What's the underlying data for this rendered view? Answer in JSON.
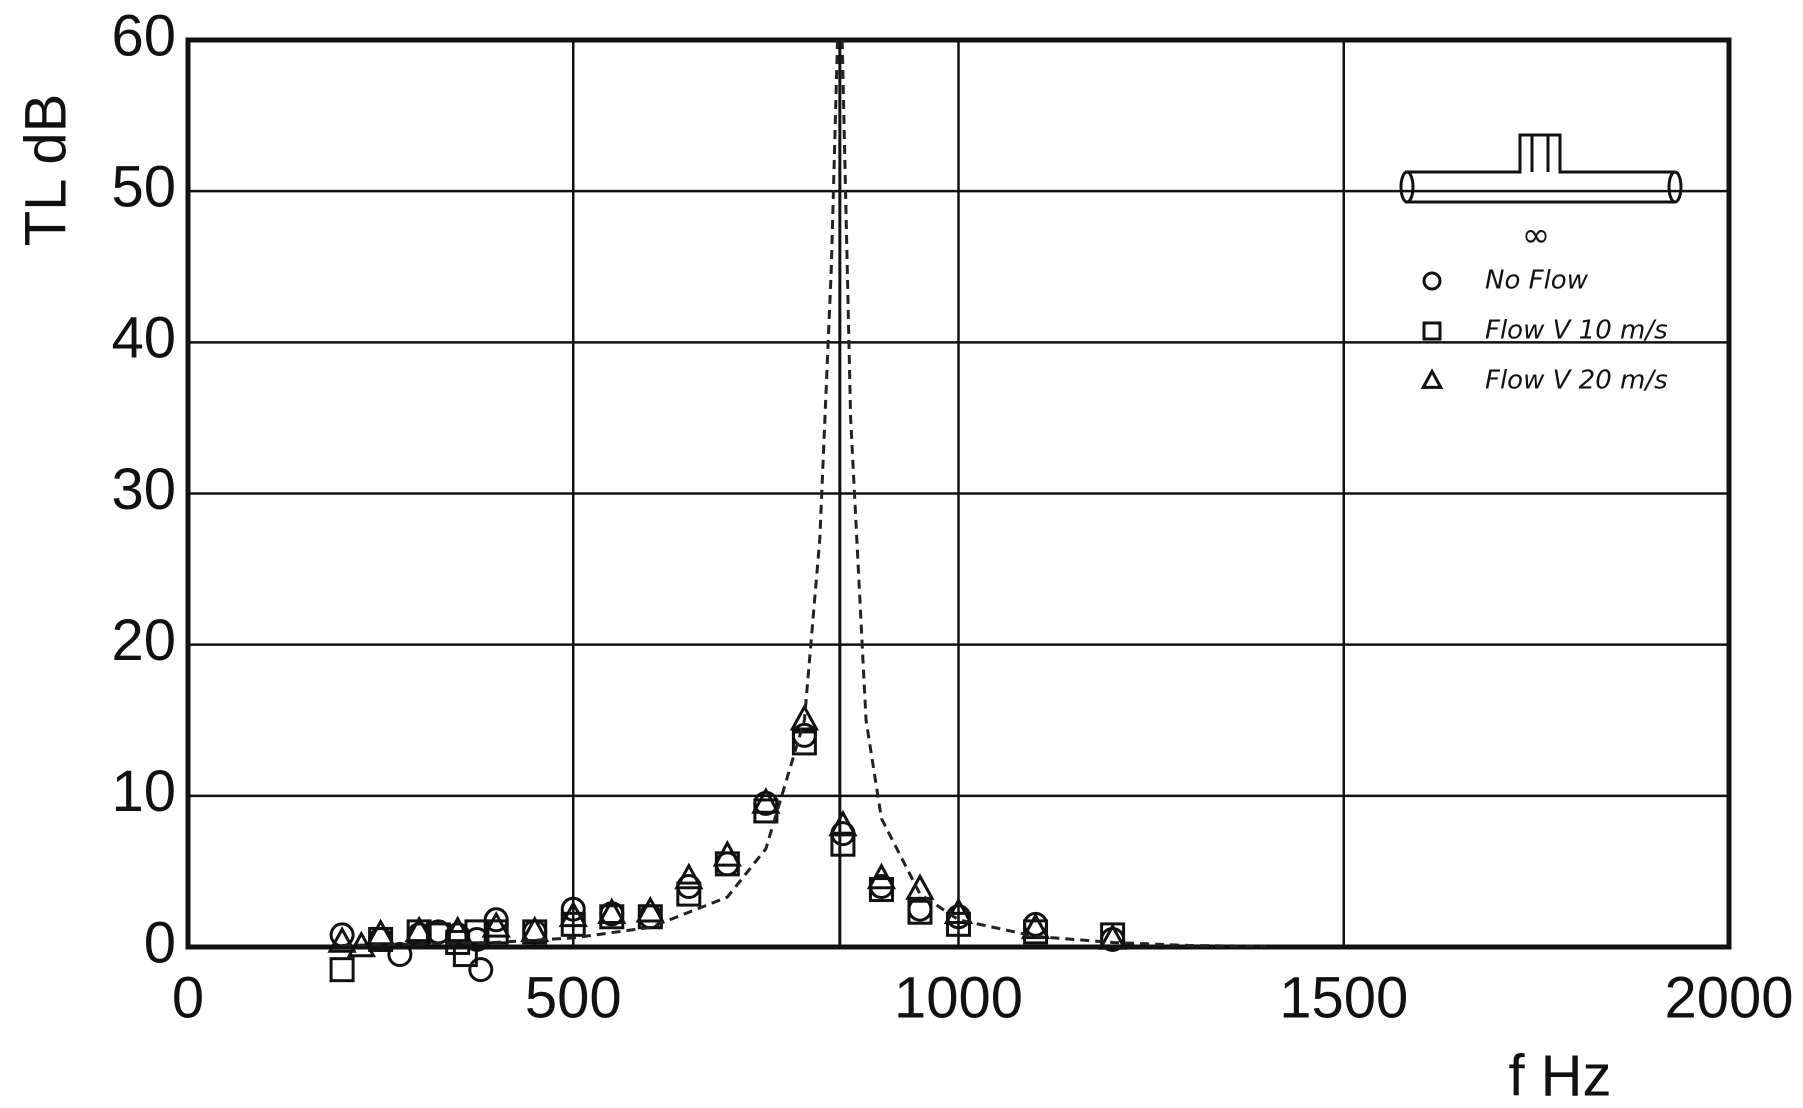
{
  "chart_data": {
    "type": "scatter",
    "y_label": "TL dB",
    "x_label": "f Hz",
    "xlim": [
      0,
      2000
    ],
    "ylim": [
      0,
      60
    ],
    "xticks": [
      0,
      500,
      1000,
      1500,
      2000
    ],
    "yticks": [
      0,
      10,
      20,
      30,
      40,
      50,
      60
    ],
    "grid": true,
    "legend": "upper right",
    "annotation": "∞",
    "vlines": [
      846
    ],
    "series": [
      {
        "name": "No Flow",
        "marker": "circle",
        "color": "#111",
        "x": [
          200,
          250,
          275,
          300,
          325,
          350,
          375,
          380,
          400,
          450,
          500,
          550,
          600,
          650,
          700,
          750,
          800,
          850,
          900,
          950,
          1000,
          1100,
          1200
        ],
        "values": [
          0.8,
          0.5,
          -0.5,
          0.8,
          1,
          0.8,
          0.5,
          -1.5,
          1.8,
          1,
          2.5,
          2.2,
          2,
          4,
          5.5,
          9.5,
          14,
          7.5,
          4,
          2.5,
          2,
          1.5,
          0.5
        ]
      },
      {
        "name": "Flow V 10 m/s",
        "marker": "square",
        "color": "#111",
        "x": [
          200,
          250,
          300,
          325,
          350,
          360,
          375,
          400,
          450,
          500,
          550,
          600,
          650,
          700,
          750,
          800,
          850,
          900,
          950,
          1000,
          1100,
          1200
        ],
        "values": [
          -1.5,
          0.5,
          1,
          0.8,
          0.3,
          -0.5,
          1,
          1,
          1,
          1.5,
          2,
          2,
          3.5,
          5.5,
          9,
          13.5,
          6.8,
          3.8,
          2.3,
          1.5,
          1,
          0.8
        ]
      },
      {
        "name": "Flow V 20 m/s",
        "marker": "triangle",
        "color": "#111",
        "x": [
          200,
          225,
          250,
          300,
          350,
          400,
          450,
          500,
          550,
          600,
          650,
          700,
          750,
          800,
          850,
          900,
          950,
          1000,
          1100,
          1200
        ],
        "values": [
          0.3,
          0,
          0.8,
          1,
          1,
          1.3,
          1,
          2,
          2.2,
          2.3,
          4.5,
          6,
          9.5,
          15,
          8,
          4.5,
          3.8,
          2.2,
          1.2,
          0.5
        ]
      },
      {
        "type": "line",
        "dashed": true,
        "color": "#222",
        "x": [
          200,
          300,
          400,
          500,
          600,
          700,
          750,
          800,
          820,
          835,
          843,
          null,
          849,
          860,
          880,
          900,
          950,
          1000,
          1100,
          1200,
          1300,
          1400
        ],
        "values": [
          0.1,
          0.2,
          0.3,
          0.6,
          1.3,
          3.3,
          6.5,
          15,
          27,
          45,
          60,
          null,
          60,
          35,
          15,
          8.5,
          3.5,
          1.8,
          0.7,
          0.3,
          0.1,
          0.05
        ]
      }
    ]
  }
}
